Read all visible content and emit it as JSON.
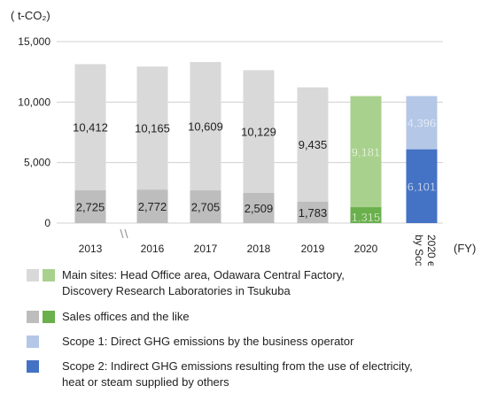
{
  "chart_data": {
    "type": "bar",
    "stacked": true,
    "unit_label": "( t-CO₂)",
    "x_unit_label": "(FY)",
    "ylim": [
      0,
      15000
    ],
    "yticks": [
      "15,000",
      "10,000",
      "5,000",
      "0"
    ],
    "ytick_values": [
      15000,
      10000,
      5000,
      0
    ],
    "axis_break_between": [
      "2013",
      "2016"
    ],
    "categories": [
      "2013",
      "2016",
      "2017",
      "2018",
      "2019",
      "2020",
      "2020 emissions by Scope"
    ],
    "series": [
      {
        "legend_key": "sales",
        "values": [
          2725,
          2772,
          2705,
          2509,
          1783,
          1315,
          null
        ],
        "labels": [
          "2,725",
          "2,772",
          "2,705",
          "2,509",
          "1,783",
          "1,315",
          ""
        ],
        "colors": [
          "#bdbdbd",
          "#bdbdbd",
          "#bdbdbd",
          "#bdbdbd",
          "#bdbdbd",
          "#6ab04c",
          null
        ]
      },
      {
        "legend_key": "main",
        "values": [
          10412,
          10165,
          10609,
          10129,
          9435,
          9181,
          null
        ],
        "labels": [
          "10,412",
          "10,165",
          "10,609",
          "10,129",
          "9,435",
          "9,181",
          ""
        ],
        "colors": [
          "#d9d9d9",
          "#d9d9d9",
          "#d9d9d9",
          "#d9d9d9",
          "#d9d9d9",
          "#a9d18e",
          null
        ]
      },
      {
        "legend_key": "scope2",
        "values": [
          null,
          null,
          null,
          null,
          null,
          null,
          6101
        ],
        "labels": [
          "",
          "",
          "",
          "",
          "",
          "",
          "6,101"
        ],
        "colors": [
          null,
          null,
          null,
          null,
          null,
          null,
          "#4472c4"
        ]
      },
      {
        "legend_key": "scope1",
        "values": [
          null,
          null,
          null,
          null,
          null,
          null,
          4396
        ],
        "labels": [
          "",
          "",
          "",
          "",
          "",
          "",
          "4,396"
        ],
        "colors": [
          null,
          null,
          null,
          null,
          null,
          null,
          "#b4c7e7"
        ]
      }
    ],
    "legend": [
      {
        "key": "main",
        "colors": [
          "#d9d9d9",
          "#a9d18e"
        ],
        "line1": "Main sites: Head Office area, Odawara Central Factory,",
        "line2": "Discovery Research Laboratories in Tsukuba"
      },
      {
        "key": "sales",
        "colors": [
          "#bdbdbd",
          "#6ab04c"
        ],
        "line1": "Sales offices and the like",
        "line2": ""
      },
      {
        "key": "scope1",
        "colors": [
          "#b4c7e7"
        ],
        "line1": "Scope 1: Direct GHG emissions by the business operator",
        "line2": ""
      },
      {
        "key": "scope2",
        "colors": [
          "#4472c4"
        ],
        "line1": "Scope 2: Indirect GHG emissions resulting from the use of electricity,",
        "line2": "heat or steam supplied by others"
      }
    ]
  }
}
